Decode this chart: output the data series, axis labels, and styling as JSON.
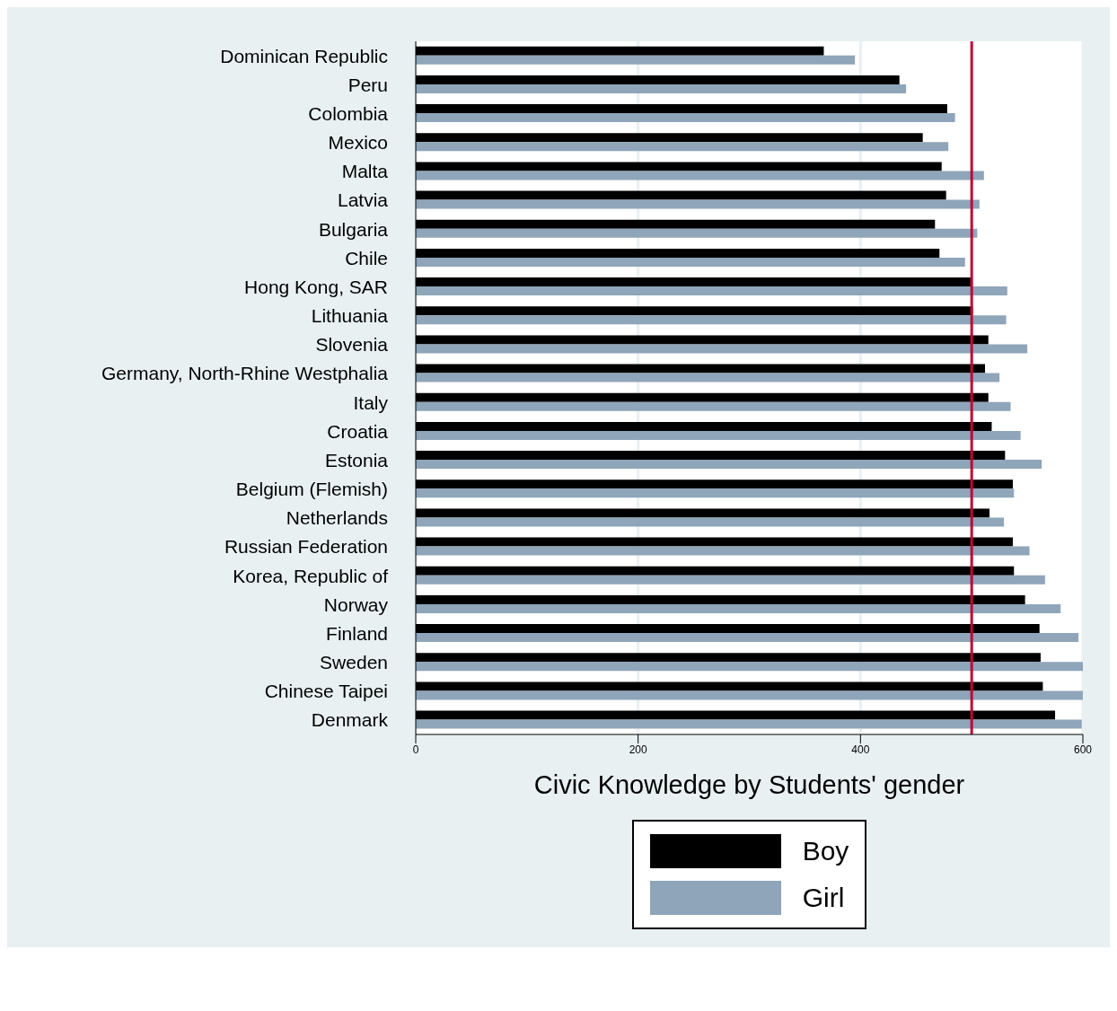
{
  "chart_data": {
    "type": "bar",
    "orientation": "horizontal",
    "title": "Civic Knowledge by Students' gender",
    "categories": [
      "Dominican Republic",
      "Peru",
      "Colombia",
      "Mexico",
      "Malta",
      "Latvia",
      "Bulgaria",
      "Chile",
      "Hong Kong, SAR",
      "Lithuania",
      "Slovenia",
      "Germany, North-Rhine Westphalia",
      "Italy",
      "Croatia",
      "Estonia",
      "Belgium (Flemish)",
      "Netherlands",
      "Russian Federation",
      "Korea, Republic of",
      "Norway",
      "Finland",
      "Sweden",
      "Chinese Taipei",
      "Denmark"
    ],
    "series": [
      {
        "name": "Boy",
        "color": "#000000",
        "values": [
          367,
          435,
          478,
          456,
          473,
          477,
          467,
          471,
          499,
          501,
          515,
          512,
          515,
          518,
          530,
          537,
          516,
          537,
          538,
          548,
          561,
          562,
          564,
          575
        ]
      },
      {
        "name": "Girl",
        "color": "#8fa5b9",
        "values": [
          395,
          441,
          485,
          479,
          511,
          507,
          505,
          494,
          532,
          531,
          550,
          525,
          535,
          544,
          563,
          538,
          529,
          552,
          566,
          580,
          596,
          600,
          600,
          599
        ]
      }
    ],
    "xlim": [
      0,
      600
    ],
    "xticks": [
      0,
      200,
      400,
      600
    ],
    "grid": "x",
    "legend": "bottom",
    "ref_lines": [
      {
        "axis": "x",
        "value": 500,
        "color": "#c10534"
      }
    ]
  }
}
